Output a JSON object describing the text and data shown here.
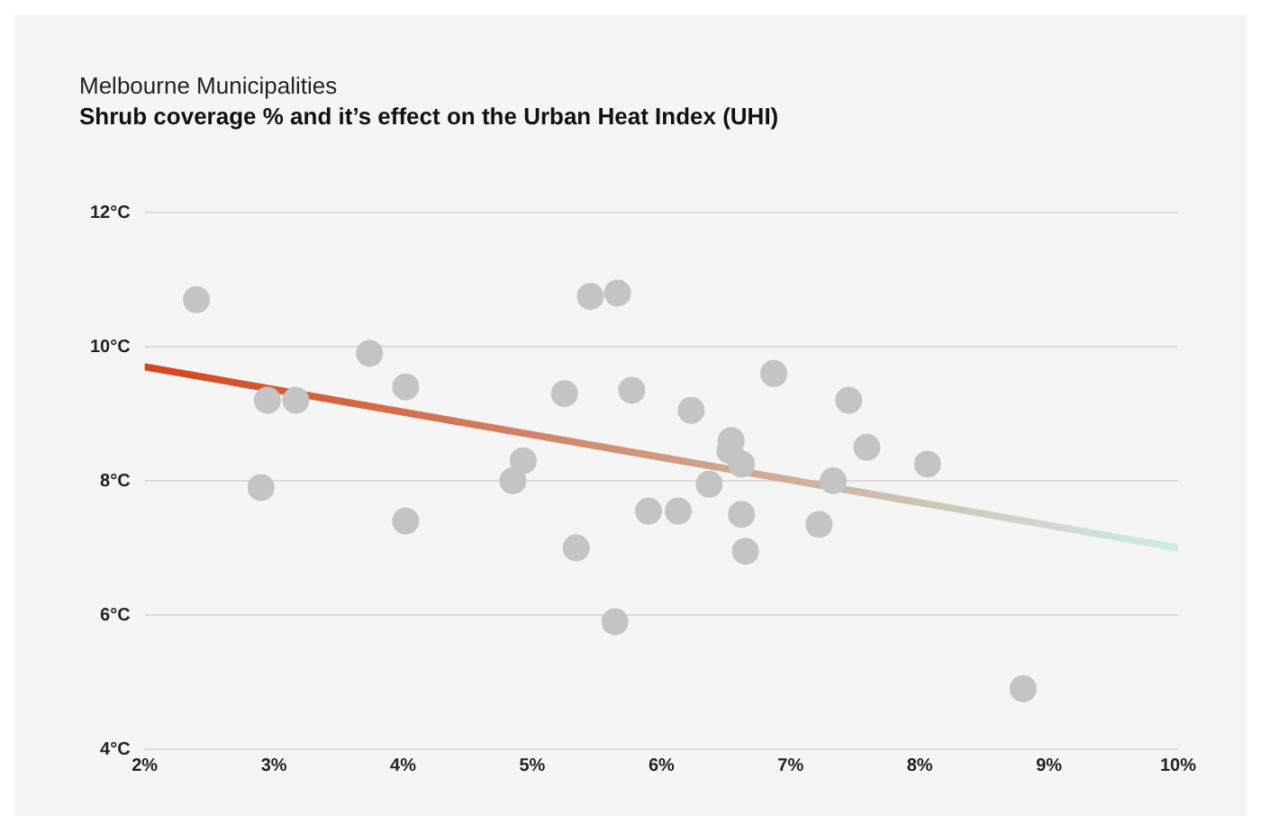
{
  "chart_data": {
    "type": "scatter",
    "title": "Melbourne Municipalities",
    "subtitle": "Shrub coverage % and it’s effect on the Urban Heat Index (UHI)",
    "xlim": [
      2,
      10
    ],
    "xticks": [
      {
        "value": 2,
        "label": "2%"
      },
      {
        "value": 3,
        "label": "3%"
      },
      {
        "value": 4,
        "label": "4%"
      },
      {
        "value": 5,
        "label": "5%"
      },
      {
        "value": 6,
        "label": "6%"
      },
      {
        "value": 7,
        "label": "7%"
      },
      {
        "value": 8,
        "label": "8%"
      },
      {
        "value": 9,
        "label": "9%"
      },
      {
        "value": 10,
        "label": "10%"
      }
    ],
    "ylim": [
      4,
      12
    ],
    "yticks": [
      {
        "value": 4,
        "label": "4°C"
      },
      {
        "value": 6,
        "label": "6°C"
      },
      {
        "value": 8,
        "label": "8°C"
      },
      {
        "value": 10,
        "label": "10°C"
      },
      {
        "value": 12,
        "label": "12°C"
      }
    ],
    "grid": "y",
    "legend": false,
    "series": [
      {
        "marker": "circle",
        "color": "#c4c4c4",
        "x": [
          2.4,
          2.95,
          3.17,
          2.9,
          3.74,
          4.02,
          4.02,
          4.85,
          4.93,
          5.25,
          5.34,
          5.45,
          5.66,
          5.64,
          5.77,
          5.9,
          6.13,
          6.23,
          6.37,
          6.54,
          6.53,
          6.62,
          6.62,
          6.65,
          6.87,
          7.33,
          7.22,
          7.45,
          7.59,
          8.06,
          8.8
        ],
        "values": [
          10.7,
          9.2,
          9.2,
          7.9,
          9.9,
          9.4,
          7.4,
          8.0,
          8.3,
          9.3,
          7.0,
          10.75,
          10.8,
          5.9,
          9.35,
          7.55,
          7.55,
          9.05,
          7.95,
          8.6,
          8.45,
          8.25,
          7.5,
          6.95,
          9.6,
          8.0,
          7.35,
          9.2,
          8.5,
          8.25,
          4.9
        ]
      },
      {
        "type": "line",
        "colors": [
          "#d4451a",
          "#cdeee6"
        ],
        "x": [
          2,
          10
        ],
        "values": [
          9.7,
          7.0
        ],
        "line_style": "solid"
      }
    ]
  }
}
